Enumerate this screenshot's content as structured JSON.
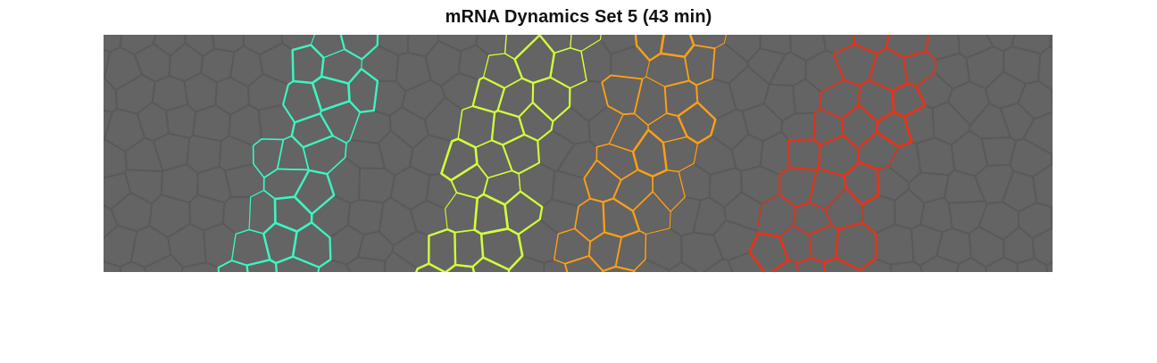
{
  "figure": {
    "title": "mRNA Dynamics Set 5 (43 min)"
  },
  "image": {
    "background_color": "#646464",
    "membrane_color": "#5a5a5a"
  },
  "stripes": [
    {
      "name": "stripe-1",
      "color": "#3cf5c3"
    },
    {
      "name": "stripe-2",
      "color": "#d2ff3a"
    },
    {
      "name": "stripe-3",
      "color": "#ffa016"
    },
    {
      "name": "stripe-4",
      "color": "#f03014"
    }
  ]
}
